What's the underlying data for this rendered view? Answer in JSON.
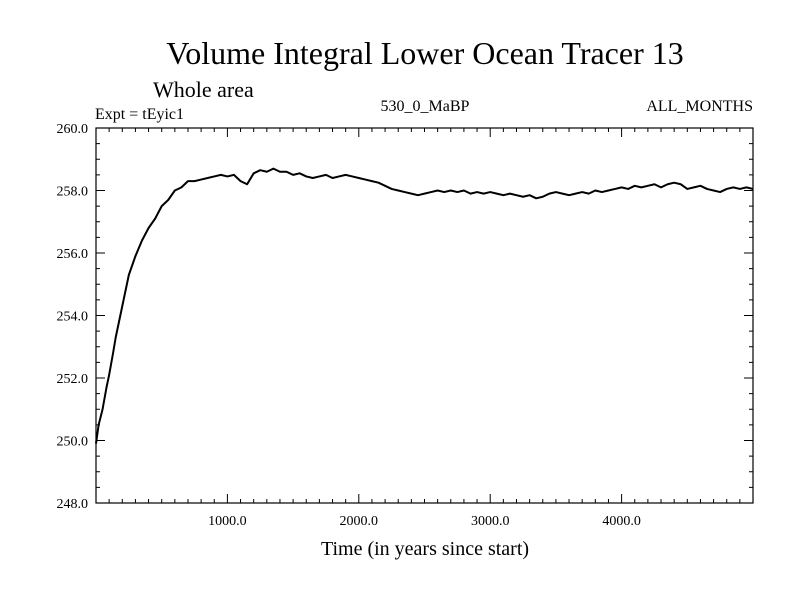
{
  "chart_data": {
    "type": "line",
    "title": "Volume Integral Lower Ocean Tracer 13",
    "subtitle": "Whole area",
    "header_left": "Expt = tEyic1",
    "header_center": "530_0_MaBP",
    "header_right": "ALL_MONTHS",
    "xlabel": "Time (in years since start)",
    "ylabel": "",
    "xlim": [
      0,
      5000
    ],
    "ylim": [
      248.0,
      260.0
    ],
    "x_ticks": [
      1000,
      2000,
      3000,
      4000
    ],
    "x_tick_labels": [
      "1000.0",
      "2000.0",
      "3000.0",
      "4000.0"
    ],
    "y_ticks": [
      248,
      250,
      252,
      254,
      256,
      258,
      260
    ],
    "y_tick_labels": [
      "248.0",
      "250.0",
      "252.0",
      "254.0",
      "256.0",
      "258.0",
      "260.0"
    ],
    "series": [
      {
        "name": "tracer13",
        "color": "#000000",
        "x": [
          0,
          20,
          50,
          80,
          100,
          130,
          150,
          180,
          200,
          230,
          250,
          300,
          350,
          400,
          450,
          500,
          550,
          600,
          650,
          700,
          750,
          800,
          850,
          900,
          950,
          1000,
          1050,
          1100,
          1150,
          1200,
          1250,
          1300,
          1350,
          1400,
          1450,
          1500,
          1550,
          1600,
          1650,
          1700,
          1750,
          1800,
          1850,
          1900,
          1950,
          2000,
          2050,
          2100,
          2150,
          2200,
          2250,
          2300,
          2350,
          2400,
          2450,
          2500,
          2550,
          2600,
          2650,
          2700,
          2750,
          2800,
          2850,
          2900,
          2950,
          3000,
          3050,
          3100,
          3150,
          3200,
          3250,
          3300,
          3350,
          3400,
          3450,
          3500,
          3550,
          3600,
          3650,
          3700,
          3750,
          3800,
          3850,
          3900,
          3950,
          4000,
          4050,
          4100,
          4150,
          4200,
          4250,
          4300,
          4350,
          4400,
          4450,
          4500,
          4550,
          4600,
          4650,
          4700,
          4750,
          4800,
          4850,
          4900,
          4950,
          5000
        ],
        "values": [
          249.9,
          250.5,
          251.0,
          251.7,
          252.1,
          252.8,
          253.3,
          253.9,
          254.3,
          254.9,
          255.3,
          255.9,
          256.4,
          256.8,
          257.1,
          257.5,
          257.7,
          258.0,
          258.1,
          258.3,
          258.3,
          258.35,
          258.4,
          258.45,
          258.5,
          258.45,
          258.5,
          258.3,
          258.2,
          258.55,
          258.65,
          258.6,
          258.7,
          258.6,
          258.6,
          258.5,
          258.55,
          258.45,
          258.4,
          258.45,
          258.5,
          258.4,
          258.45,
          258.5,
          258.45,
          258.4,
          258.35,
          258.3,
          258.25,
          258.15,
          258.05,
          258.0,
          257.95,
          257.9,
          257.85,
          257.9,
          257.95,
          258.0,
          257.95,
          258.0,
          257.95,
          258.0,
          257.9,
          257.95,
          257.9,
          257.95,
          257.9,
          257.85,
          257.9,
          257.85,
          257.8,
          257.85,
          257.75,
          257.8,
          257.9,
          257.95,
          257.9,
          257.85,
          257.9,
          257.95,
          257.9,
          258.0,
          257.95,
          258.0,
          258.05,
          258.1,
          258.05,
          258.15,
          258.1,
          258.15,
          258.2,
          258.1,
          258.2,
          258.25,
          258.2,
          258.05,
          258.1,
          258.15,
          258.05,
          258.0,
          257.95,
          258.05,
          258.1,
          258.05,
          258.1,
          258.05
        ]
      }
    ]
  }
}
